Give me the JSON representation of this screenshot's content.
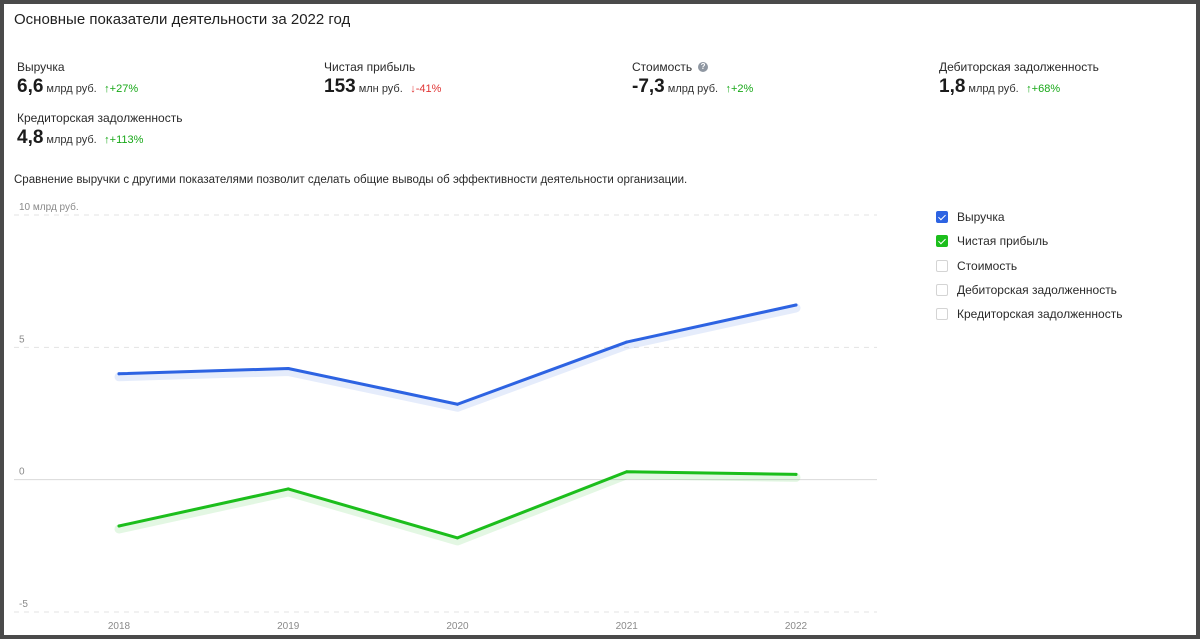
{
  "title": "Основные показатели деятельности за 2022 год",
  "metrics": [
    {
      "label": "Выручка",
      "value": "6,6",
      "unit": "млрд руб.",
      "change": "+27%",
      "direction": "up",
      "help": false
    },
    {
      "label": "Чистая прибыль",
      "value": "153",
      "unit": "млн руб.",
      "change": "-41%",
      "direction": "down",
      "help": false
    },
    {
      "label": "Стоимость",
      "value": "-7,3",
      "unit": "млрд руб.",
      "change": "+2%",
      "direction": "up",
      "help": true
    },
    {
      "label": "Дебиторская задолженность",
      "value": "1,8",
      "unit": "млрд руб.",
      "change": "+68%",
      "direction": "up",
      "help": false
    },
    {
      "label": "Кредиторская задолженность",
      "value": "4,8",
      "unit": "млрд руб.",
      "change": "+113%",
      "direction": "up",
      "help": false
    }
  ],
  "description": "Сравнение выручки с другими показателями позволит сделать общие выводы об эффективности деятельности организации.",
  "help_icon": "question-circle-icon",
  "colors": {
    "up": "#18a818",
    "down": "#e03535",
    "revenue": "#2d63e2",
    "profit": "#1cbe1c",
    "checkbox_unchecked": "#ffffff"
  },
  "legend": [
    {
      "label": "Выручка",
      "checked": true,
      "color": "#2d63e2"
    },
    {
      "label": "Чистая прибыль",
      "checked": true,
      "color": "#1cbe1c"
    },
    {
      "label": "Стоимость",
      "checked": false,
      "color": ""
    },
    {
      "label": "Дебиторская задолженность",
      "checked": false,
      "color": ""
    },
    {
      "label": "Кредиторская задолженность",
      "checked": false,
      "color": ""
    }
  ],
  "chart_data": {
    "type": "line",
    "title": "",
    "xlabel": "",
    "ylabel": "",
    "x": [
      "2018",
      "2019",
      "2020",
      "2021",
      "2022"
    ],
    "ylim": [
      -5,
      10
    ],
    "yticks": [
      {
        "value": 10,
        "label": "10 млрд руб."
      },
      {
        "value": 5,
        "label": "5"
      },
      {
        "value": 0,
        "label": "0"
      },
      {
        "value": -5,
        "label": "-5"
      }
    ],
    "grid": true,
    "legend_position": "right",
    "series": [
      {
        "name": "Выручка",
        "color": "#2d63e2",
        "values": [
          4.0,
          4.2,
          2.85,
          5.2,
          6.6
        ]
      },
      {
        "name": "Чистая прибыль",
        "color": "#1cbe1c",
        "values": [
          -1.75,
          -0.35,
          -2.2,
          0.3,
          0.2
        ]
      }
    ]
  }
}
